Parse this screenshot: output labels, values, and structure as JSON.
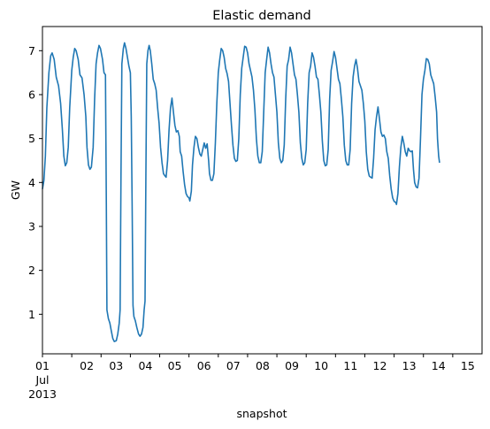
{
  "chart_data": {
    "type": "line",
    "title": "Elastic demand",
    "xlabel": "snapshot",
    "ylabel": "GW",
    "grid": false,
    "legend": "none",
    "xlim": [
      0,
      15
    ],
    "ylim": [
      0.1,
      7.55
    ],
    "x_ticks": [
      {
        "pos": 0,
        "lines": [
          "01",
          "Jul",
          "2013"
        ]
      },
      {
        "pos": 1,
        "lines": [
          "02"
        ]
      },
      {
        "pos": 2,
        "lines": [
          "03"
        ]
      },
      {
        "pos": 3,
        "lines": [
          "04"
        ]
      },
      {
        "pos": 4,
        "lines": [
          "05"
        ]
      },
      {
        "pos": 5,
        "lines": [
          "06"
        ]
      },
      {
        "pos": 6,
        "lines": [
          "07"
        ]
      },
      {
        "pos": 7,
        "lines": [
          "08"
        ]
      },
      {
        "pos": 8,
        "lines": [
          "09"
        ]
      },
      {
        "pos": 9,
        "lines": [
          "10"
        ]
      },
      {
        "pos": 10,
        "lines": [
          "11"
        ]
      },
      {
        "pos": 11,
        "lines": [
          "12"
        ]
      },
      {
        "pos": 12,
        "lines": [
          "13"
        ]
      },
      {
        "pos": 13,
        "lines": [
          "14"
        ]
      },
      {
        "pos": 14,
        "lines": [
          "15"
        ]
      }
    ],
    "y_ticks": [
      1,
      2,
      3,
      4,
      5,
      6,
      7
    ],
    "series": [
      {
        "name": "",
        "color": "#1f77b4",
        "points": [
          [
            0.0,
            3.85
          ],
          [
            0.05,
            4.05
          ],
          [
            0.1,
            4.6
          ],
          [
            0.15,
            5.7
          ],
          [
            0.22,
            6.5
          ],
          [
            0.28,
            6.88
          ],
          [
            0.33,
            6.95
          ],
          [
            0.4,
            6.8
          ],
          [
            0.47,
            6.4
          ],
          [
            0.55,
            6.2
          ],
          [
            0.62,
            5.8
          ],
          [
            0.68,
            5.2
          ],
          [
            0.73,
            4.6
          ],
          [
            0.78,
            4.38
          ],
          [
            0.83,
            4.45
          ],
          [
            0.88,
            4.8
          ],
          [
            0.93,
            5.7
          ],
          [
            1.0,
            6.55
          ],
          [
            1.05,
            6.85
          ],
          [
            1.1,
            7.05
          ],
          [
            1.15,
            7.0
          ],
          [
            1.22,
            6.8
          ],
          [
            1.28,
            6.45
          ],
          [
            1.35,
            6.38
          ],
          [
            1.42,
            6.0
          ],
          [
            1.48,
            5.5
          ],
          [
            1.52,
            4.8
          ],
          [
            1.57,
            4.4
          ],
          [
            1.62,
            4.3
          ],
          [
            1.67,
            4.35
          ],
          [
            1.73,
            4.8
          ],
          [
            1.78,
            5.9
          ],
          [
            1.83,
            6.7
          ],
          [
            1.88,
            6.95
          ],
          [
            1.93,
            7.12
          ],
          [
            1.98,
            7.05
          ],
          [
            2.05,
            6.8
          ],
          [
            2.1,
            6.5
          ],
          [
            2.15,
            6.45
          ],
          [
            2.18,
            3.5
          ],
          [
            2.2,
            1.1
          ],
          [
            2.25,
            0.9
          ],
          [
            2.3,
            0.8
          ],
          [
            2.35,
            0.62
          ],
          [
            2.4,
            0.45
          ],
          [
            2.45,
            0.38
          ],
          [
            2.52,
            0.4
          ],
          [
            2.57,
            0.55
          ],
          [
            2.62,
            0.8
          ],
          [
            2.65,
            1.1
          ],
          [
            2.68,
            4.2
          ],
          [
            2.71,
            6.7
          ],
          [
            2.76,
            7.05
          ],
          [
            2.8,
            7.18
          ],
          [
            2.85,
            7.05
          ],
          [
            2.9,
            6.85
          ],
          [
            2.95,
            6.65
          ],
          [
            3.0,
            6.5
          ],
          [
            3.03,
            5.5
          ],
          [
            3.06,
            3.5
          ],
          [
            3.09,
            1.2
          ],
          [
            3.12,
            0.95
          ],
          [
            3.17,
            0.85
          ],
          [
            3.22,
            0.7
          ],
          [
            3.28,
            0.55
          ],
          [
            3.33,
            0.5
          ],
          [
            3.38,
            0.55
          ],
          [
            3.43,
            0.7
          ],
          [
            3.47,
            1.1
          ],
          [
            3.5,
            1.3
          ],
          [
            3.53,
            4.2
          ],
          [
            3.56,
            6.7
          ],
          [
            3.6,
            7.0
          ],
          [
            3.64,
            7.12
          ],
          [
            3.68,
            7.0
          ],
          [
            3.73,
            6.7
          ],
          [
            3.78,
            6.35
          ],
          [
            3.83,
            6.25
          ],
          [
            3.88,
            6.1
          ],
          [
            3.93,
            5.7
          ],
          [
            3.98,
            5.35
          ],
          [
            4.03,
            4.8
          ],
          [
            4.08,
            4.45
          ],
          [
            4.13,
            4.2
          ],
          [
            4.18,
            4.15
          ],
          [
            4.22,
            4.12
          ],
          [
            4.27,
            4.5
          ],
          [
            4.32,
            5.2
          ],
          [
            4.37,
            5.7
          ],
          [
            4.42,
            5.92
          ],
          [
            4.47,
            5.6
          ],
          [
            4.52,
            5.3
          ],
          [
            4.57,
            5.15
          ],
          [
            4.62,
            5.18
          ],
          [
            4.67,
            5.05
          ],
          [
            4.7,
            4.7
          ],
          [
            4.75,
            4.6
          ],
          [
            4.8,
            4.25
          ],
          [
            4.85,
            3.95
          ],
          [
            4.9,
            3.75
          ],
          [
            4.95,
            3.68
          ],
          [
            5.0,
            3.65
          ],
          [
            5.03,
            3.58
          ],
          [
            5.08,
            3.8
          ],
          [
            5.12,
            4.4
          ],
          [
            5.17,
            4.8
          ],
          [
            5.22,
            5.05
          ],
          [
            5.27,
            5.0
          ],
          [
            5.32,
            4.8
          ],
          [
            5.37,
            4.65
          ],
          [
            5.42,
            4.6
          ],
          [
            5.47,
            4.75
          ],
          [
            5.52,
            4.9
          ],
          [
            5.57,
            4.78
          ],
          [
            5.62,
            4.88
          ],
          [
            5.67,
            4.5
          ],
          [
            5.7,
            4.2
          ],
          [
            5.75,
            4.05
          ],
          [
            5.8,
            4.05
          ],
          [
            5.85,
            4.2
          ],
          [
            5.9,
            4.9
          ],
          [
            5.95,
            5.8
          ],
          [
            6.0,
            6.5
          ],
          [
            6.05,
            6.8
          ],
          [
            6.1,
            7.05
          ],
          [
            6.15,
            7.0
          ],
          [
            6.2,
            6.85
          ],
          [
            6.25,
            6.6
          ],
          [
            6.3,
            6.48
          ],
          [
            6.35,
            6.3
          ],
          [
            6.4,
            5.8
          ],
          [
            6.45,
            5.3
          ],
          [
            6.5,
            4.85
          ],
          [
            6.55,
            4.55
          ],
          [
            6.6,
            4.48
          ],
          [
            6.65,
            4.5
          ],
          [
            6.7,
            5.0
          ],
          [
            6.75,
            6.0
          ],
          [
            6.8,
            6.6
          ],
          [
            6.85,
            6.85
          ],
          [
            6.9,
            7.1
          ],
          [
            6.95,
            7.08
          ],
          [
            7.0,
            6.95
          ],
          [
            7.05,
            6.7
          ],
          [
            7.1,
            6.55
          ],
          [
            7.15,
            6.4
          ],
          [
            7.2,
            6.1
          ],
          [
            7.25,
            5.65
          ],
          [
            7.3,
            5.0
          ],
          [
            7.35,
            4.6
          ],
          [
            7.4,
            4.45
          ],
          [
            7.45,
            4.45
          ],
          [
            7.5,
            4.7
          ],
          [
            7.55,
            5.6
          ],
          [
            7.6,
            6.5
          ],
          [
            7.65,
            6.8
          ],
          [
            7.7,
            7.08
          ],
          [
            7.75,
            6.95
          ],
          [
            7.8,
            6.7
          ],
          [
            7.85,
            6.5
          ],
          [
            7.9,
            6.4
          ],
          [
            7.95,
            6.0
          ],
          [
            8.0,
            5.6
          ],
          [
            8.05,
            4.9
          ],
          [
            8.1,
            4.55
          ],
          [
            8.15,
            4.45
          ],
          [
            8.2,
            4.5
          ],
          [
            8.25,
            4.85
          ],
          [
            8.3,
            5.9
          ],
          [
            8.35,
            6.65
          ],
          [
            8.4,
            6.8
          ],
          [
            8.45,
            7.08
          ],
          [
            8.5,
            6.95
          ],
          [
            8.55,
            6.7
          ],
          [
            8.6,
            6.45
          ],
          [
            8.65,
            6.35
          ],
          [
            8.7,
            6.0
          ],
          [
            8.75,
            5.6
          ],
          [
            8.8,
            4.9
          ],
          [
            8.85,
            4.55
          ],
          [
            8.9,
            4.4
          ],
          [
            8.95,
            4.45
          ],
          [
            9.0,
            4.75
          ],
          [
            9.05,
            5.8
          ],
          [
            9.1,
            6.5
          ],
          [
            9.15,
            6.65
          ],
          [
            9.2,
            6.95
          ],
          [
            9.25,
            6.85
          ],
          [
            9.3,
            6.65
          ],
          [
            9.35,
            6.4
          ],
          [
            9.4,
            6.35
          ],
          [
            9.45,
            6.0
          ],
          [
            9.5,
            5.6
          ],
          [
            9.55,
            4.95
          ],
          [
            9.6,
            4.5
          ],
          [
            9.65,
            4.38
          ],
          [
            9.7,
            4.4
          ],
          [
            9.75,
            4.75
          ],
          [
            9.8,
            5.9
          ],
          [
            9.85,
            6.55
          ],
          [
            9.9,
            6.75
          ],
          [
            9.95,
            6.98
          ],
          [
            10.0,
            6.85
          ],
          [
            10.05,
            6.6
          ],
          [
            10.1,
            6.35
          ],
          [
            10.15,
            6.25
          ],
          [
            10.2,
            5.9
          ],
          [
            10.25,
            5.5
          ],
          [
            10.3,
            4.85
          ],
          [
            10.35,
            4.5
          ],
          [
            10.4,
            4.4
          ],
          [
            10.45,
            4.4
          ],
          [
            10.5,
            4.75
          ],
          [
            10.55,
            5.8
          ],
          [
            10.6,
            6.4
          ],
          [
            10.65,
            6.65
          ],
          [
            10.7,
            6.8
          ],
          [
            10.75,
            6.6
          ],
          [
            10.8,
            6.3
          ],
          [
            10.85,
            6.2
          ],
          [
            10.9,
            6.1
          ],
          [
            10.95,
            5.8
          ],
          [
            11.0,
            5.4
          ],
          [
            11.05,
            4.7
          ],
          [
            11.1,
            4.3
          ],
          [
            11.15,
            4.15
          ],
          [
            11.2,
            4.12
          ],
          [
            11.25,
            4.1
          ],
          [
            11.3,
            4.55
          ],
          [
            11.35,
            5.2
          ],
          [
            11.4,
            5.5
          ],
          [
            11.45,
            5.72
          ],
          [
            11.5,
            5.45
          ],
          [
            11.55,
            5.15
          ],
          [
            11.6,
            5.05
          ],
          [
            11.65,
            5.08
          ],
          [
            11.7,
            5.0
          ],
          [
            11.75,
            4.7
          ],
          [
            11.8,
            4.55
          ],
          [
            11.85,
            4.15
          ],
          [
            11.9,
            3.85
          ],
          [
            11.95,
            3.65
          ],
          [
            12.0,
            3.57
          ],
          [
            12.05,
            3.55
          ],
          [
            12.08,
            3.5
          ],
          [
            12.13,
            3.75
          ],
          [
            12.18,
            4.35
          ],
          [
            12.23,
            4.8
          ],
          [
            12.28,
            5.05
          ],
          [
            12.33,
            4.9
          ],
          [
            12.38,
            4.7
          ],
          [
            12.43,
            4.6
          ],
          [
            12.48,
            4.78
          ],
          [
            12.53,
            4.72
          ],
          [
            12.58,
            4.7
          ],
          [
            12.62,
            4.72
          ],
          [
            12.66,
            4.3
          ],
          [
            12.7,
            4.0
          ],
          [
            12.75,
            3.9
          ],
          [
            12.8,
            3.88
          ],
          [
            12.85,
            4.1
          ],
          [
            12.9,
            5.0
          ],
          [
            12.95,
            6.0
          ],
          [
            13.0,
            6.35
          ],
          [
            13.05,
            6.55
          ],
          [
            13.1,
            6.82
          ],
          [
            13.15,
            6.8
          ],
          [
            13.2,
            6.7
          ],
          [
            13.25,
            6.45
          ],
          [
            13.3,
            6.35
          ],
          [
            13.35,
            6.25
          ],
          [
            13.4,
            5.95
          ],
          [
            13.45,
            5.6
          ],
          [
            13.48,
            5.0
          ],
          [
            13.52,
            4.6
          ],
          [
            13.55,
            4.45
          ]
        ]
      }
    ]
  }
}
